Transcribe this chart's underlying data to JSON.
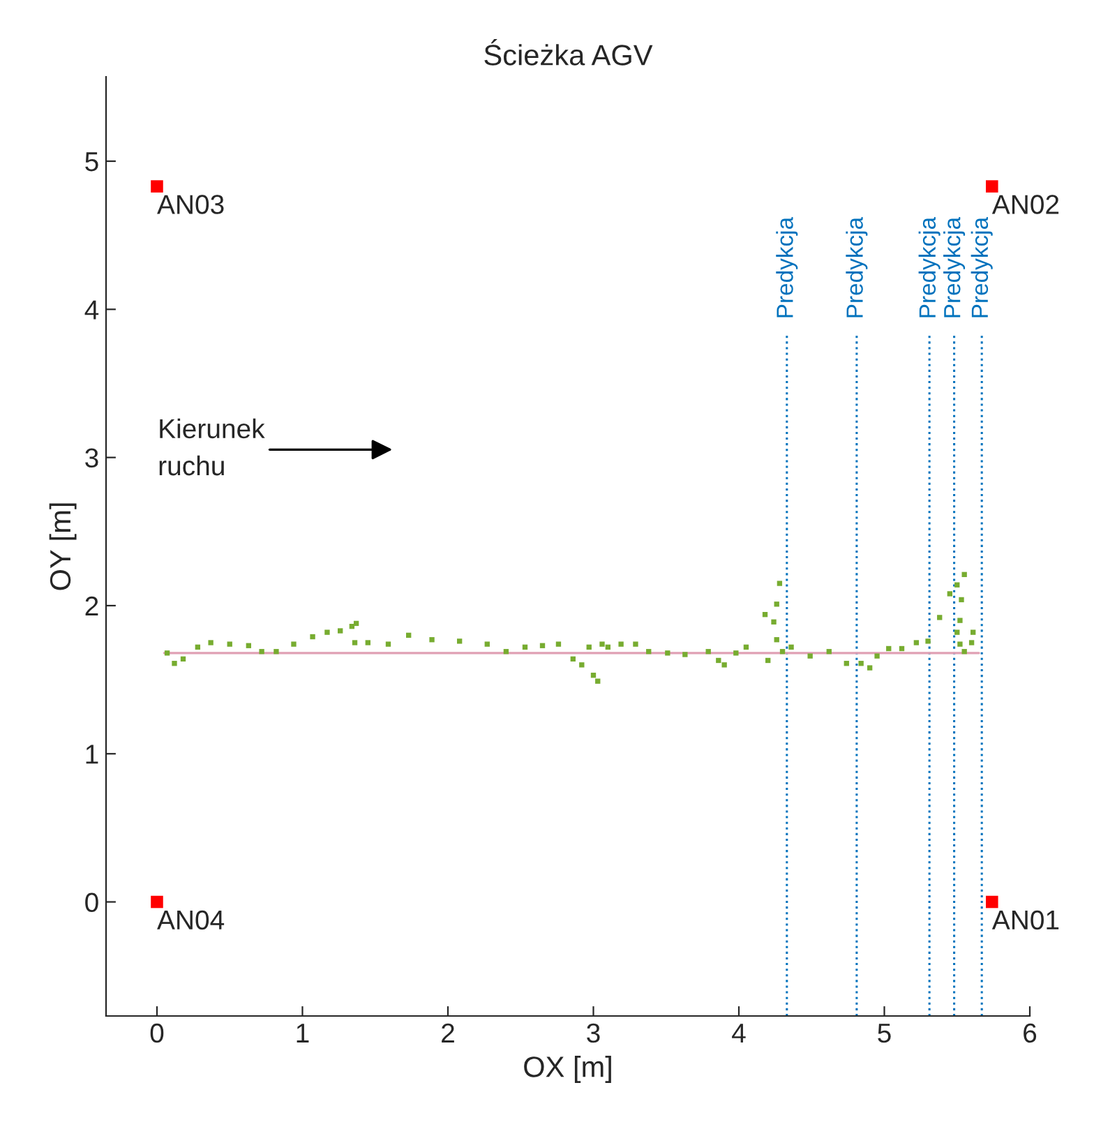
{
  "chart_data": {
    "type": "scatter",
    "title": "Ścieżka AGV",
    "xlabel": "OX [m]",
    "ylabel": "OY [m]",
    "xlim": [
      -0.35,
      6
    ],
    "ylim": [
      -0.77,
      5.57
    ],
    "xticks": [
      0,
      1,
      2,
      3,
      4,
      5,
      6
    ],
    "yticks": [
      0,
      1,
      2,
      3,
      4,
      5
    ],
    "grid": false,
    "legend": false,
    "series": [
      {
        "type": "line",
        "color": "#e0a0b4",
        "x": [
          0.05,
          5.65
        ],
        "values": [
          1.68,
          1.68
        ]
      },
      {
        "marker": "square",
        "color": "#77ac30",
        "x": [
          0.07,
          0.12,
          0.18,
          0.28,
          0.37,
          0.5,
          0.63,
          0.72,
          0.82,
          0.94,
          1.07,
          1.17,
          1.26,
          1.34,
          1.37,
          1.36,
          1.45,
          1.59,
          1.73,
          1.89,
          2.08,
          2.27,
          2.4,
          2.53,
          2.65,
          2.76,
          2.86,
          2.92,
          3.0,
          3.03,
          2.97,
          3.06,
          3.1,
          3.19,
          3.29,
          3.38,
          3.51,
          3.63,
          3.79,
          3.86,
          3.9,
          3.98,
          4.05,
          4.2,
          4.18,
          4.24,
          4.26,
          4.28,
          4.26,
          4.3,
          4.36,
          4.49,
          4.62,
          4.74,
          4.84,
          4.9,
          4.95,
          5.03,
          5.12,
          5.22,
          5.3,
          5.38,
          5.45,
          5.5,
          5.55,
          5.53,
          5.52,
          5.5,
          5.52,
          5.55,
          5.6,
          5.61
        ],
        "values": [
          1.68,
          1.61,
          1.64,
          1.72,
          1.75,
          1.74,
          1.73,
          1.69,
          1.69,
          1.74,
          1.79,
          1.82,
          1.83,
          1.86,
          1.88,
          1.75,
          1.75,
          1.74,
          1.8,
          1.77,
          1.76,
          1.74,
          1.69,
          1.72,
          1.73,
          1.74,
          1.64,
          1.6,
          1.53,
          1.49,
          1.72,
          1.74,
          1.72,
          1.74,
          1.74,
          1.69,
          1.68,
          1.67,
          1.69,
          1.63,
          1.6,
          1.68,
          1.72,
          1.63,
          1.94,
          1.89,
          2.01,
          2.15,
          1.77,
          1.69,
          1.72,
          1.66,
          1.69,
          1.61,
          1.61,
          1.58,
          1.66,
          1.71,
          1.71,
          1.75,
          1.76,
          1.92,
          2.08,
          2.14,
          2.21,
          2.04,
          1.9,
          1.82,
          1.74,
          1.69,
          1.75,
          1.82
        ]
      },
      {
        "marker": "square",
        "color": "#ff0000",
        "x": [
          5.74,
          5.74,
          0,
          0
        ],
        "values": [
          0,
          4.83,
          4.83,
          0
        ],
        "value_labels": [
          "AN01",
          "AN02",
          "AN03",
          "AN04"
        ]
      }
    ],
    "ref_lines": [
      {
        "axis": "x",
        "value": 4.33,
        "label": "Predykcja",
        "color": "#0072bd",
        "line_style": "dotted"
      },
      {
        "axis": "x",
        "value": 4.81,
        "label": "Predykcja",
        "color": "#0072bd",
        "line_style": "dotted"
      },
      {
        "axis": "x",
        "value": 5.31,
        "label": "Predykcja",
        "color": "#0072bd",
        "line_style": "dotted"
      },
      {
        "axis": "x",
        "value": 5.48,
        "label": "Predykcja",
        "color": "#0072bd",
        "line_style": "dotted"
      },
      {
        "axis": "x",
        "value": 5.67,
        "label": "Predykcja",
        "color": "#0072bd",
        "line_style": "dotted"
      }
    ],
    "annotations": [
      "Kierunek\nruchu"
    ]
  }
}
